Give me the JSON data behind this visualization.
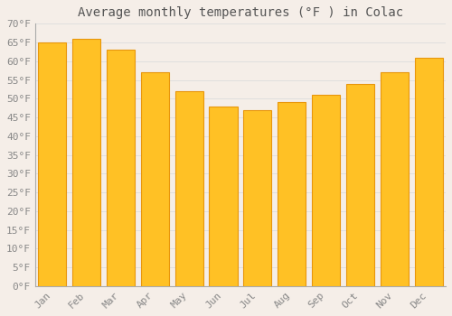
{
  "title": "Average monthly temperatures (°F ) in Colac",
  "months": [
    "Jan",
    "Feb",
    "Mar",
    "Apr",
    "May",
    "Jun",
    "Jul",
    "Aug",
    "Sep",
    "Oct",
    "Nov",
    "Dec"
  ],
  "values": [
    65,
    66,
    63,
    57,
    52,
    48,
    47,
    49,
    51,
    54,
    57,
    61
  ],
  "bar_color_face": "#FFC125",
  "bar_color_edge": "#E8960C",
  "ylim": [
    0,
    70
  ],
  "ytick_step": 5,
  "background_color": "#F5EEE8",
  "plot_bg_color": "#F5EEE8",
  "grid_color": "#DDDDDD",
  "title_fontsize": 10,
  "tick_fontsize": 8,
  "tick_label_color": "#888888",
  "title_color": "#555555"
}
